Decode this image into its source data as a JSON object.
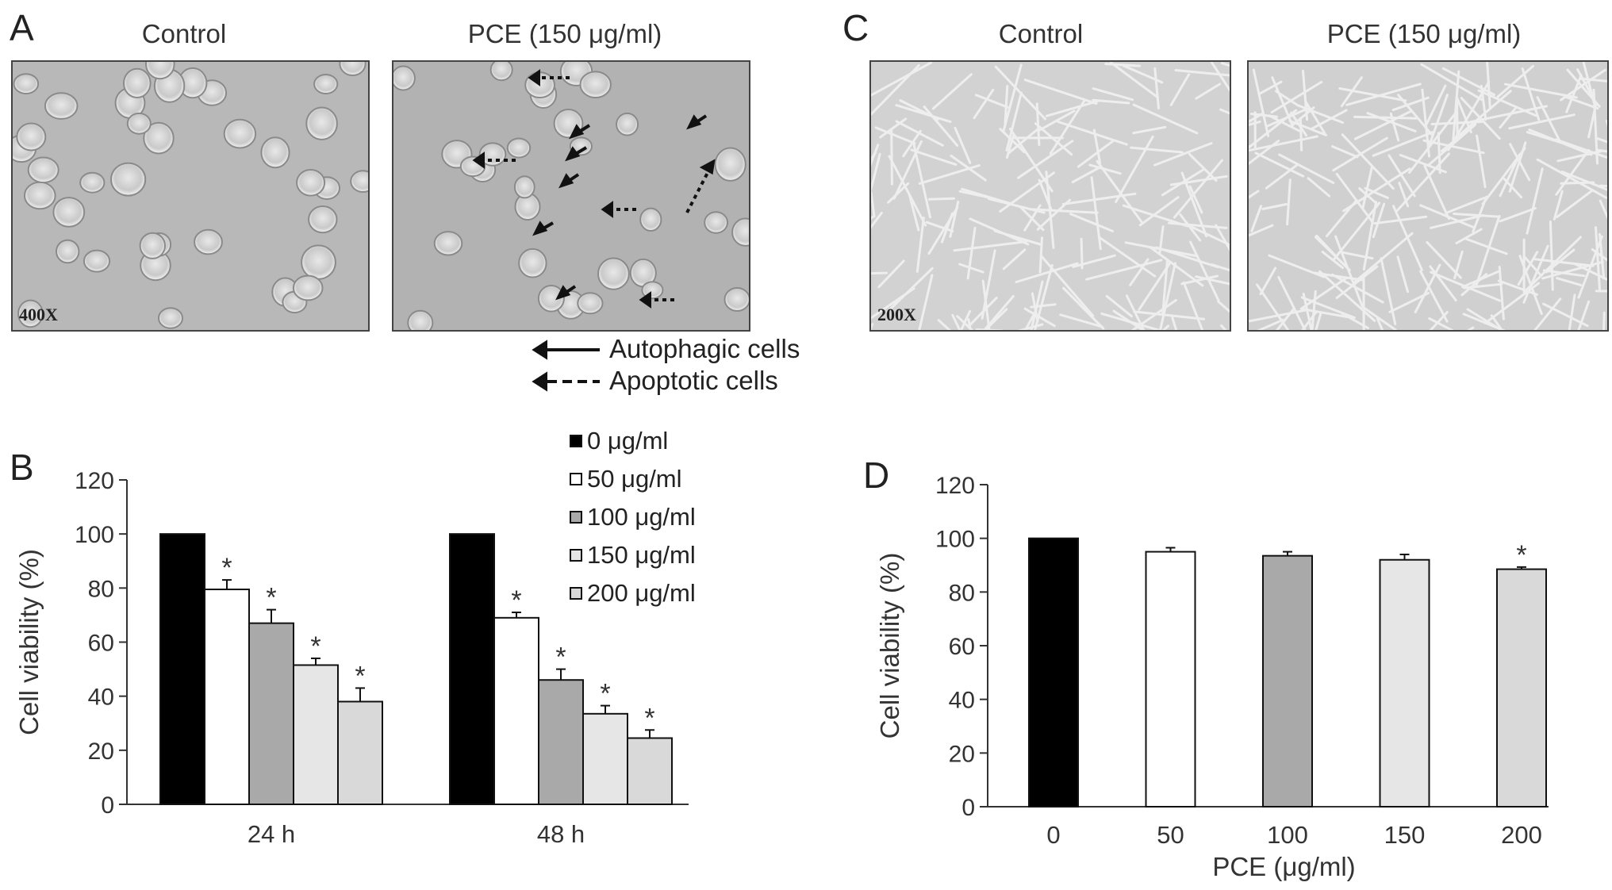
{
  "panels": {
    "a": {
      "letter": "A",
      "control_title": "Control",
      "treated_title": "PCE (150 μg/ml)",
      "magnification": "400X",
      "legend_autophagic": "Autophagic cells",
      "legend_apoptotic": "Apoptotic cells"
    },
    "c": {
      "letter": "C",
      "control_title": "Control",
      "treated_title": "PCE (150 μg/ml)",
      "magnification": "200X"
    },
    "b": {
      "letter": "B"
    },
    "d": {
      "letter": "D"
    }
  },
  "colors": {
    "s0": "#000000",
    "s50": "#ffffff",
    "s100": "#a9a9a9",
    "s150": "#e6e6e6",
    "s200": "#d9d9d9"
  },
  "chart_data": [
    {
      "panel": "B",
      "type": "bar",
      "categories": [
        "24 h",
        "48 h"
      ],
      "series": [
        {
          "name": "0 μg/ml",
          "values": [
            100,
            100
          ],
          "errors": [
            0,
            0
          ],
          "significant": [
            false,
            false
          ]
        },
        {
          "name": "50 μg/ml",
          "values": [
            79.5,
            69
          ],
          "errors": [
            3.5,
            2
          ],
          "significant": [
            true,
            true
          ]
        },
        {
          "name": "100 μg/ml",
          "values": [
            67,
            46
          ],
          "errors": [
            5,
            4
          ],
          "significant": [
            true,
            true
          ]
        },
        {
          "name": "150 μg/ml",
          "values": [
            51.5,
            33.5
          ],
          "errors": [
            2.5,
            3
          ],
          "significant": [
            true,
            true
          ]
        },
        {
          "name": "200 μg/ml",
          "values": [
            38,
            24.5
          ],
          "errors": [
            5,
            3
          ],
          "significant": [
            true,
            true
          ]
        }
      ],
      "ylabel": "Cell viability (%)",
      "xlabel": "",
      "ylim": [
        0,
        120
      ],
      "yticks": [
        0,
        20,
        40,
        60,
        80,
        100,
        120
      ],
      "marker": "*",
      "legend_position": "top-right",
      "grid": false
    },
    {
      "panel": "D",
      "type": "bar",
      "categories": [
        "0",
        "50",
        "100",
        "150",
        "200"
      ],
      "values": [
        100,
        95,
        93.5,
        92,
        88.5
      ],
      "errors": [
        0,
        1.5,
        1.5,
        2,
        0.8
      ],
      "significant": [
        false,
        false,
        false,
        false,
        true
      ],
      "ylabel": "Cell viability (%)",
      "xlabel": "PCE (μg/ml)",
      "ylim": [
        0,
        120
      ],
      "yticks": [
        0,
        20,
        40,
        60,
        80,
        100,
        120
      ],
      "marker": "*",
      "grid": false
    }
  ]
}
